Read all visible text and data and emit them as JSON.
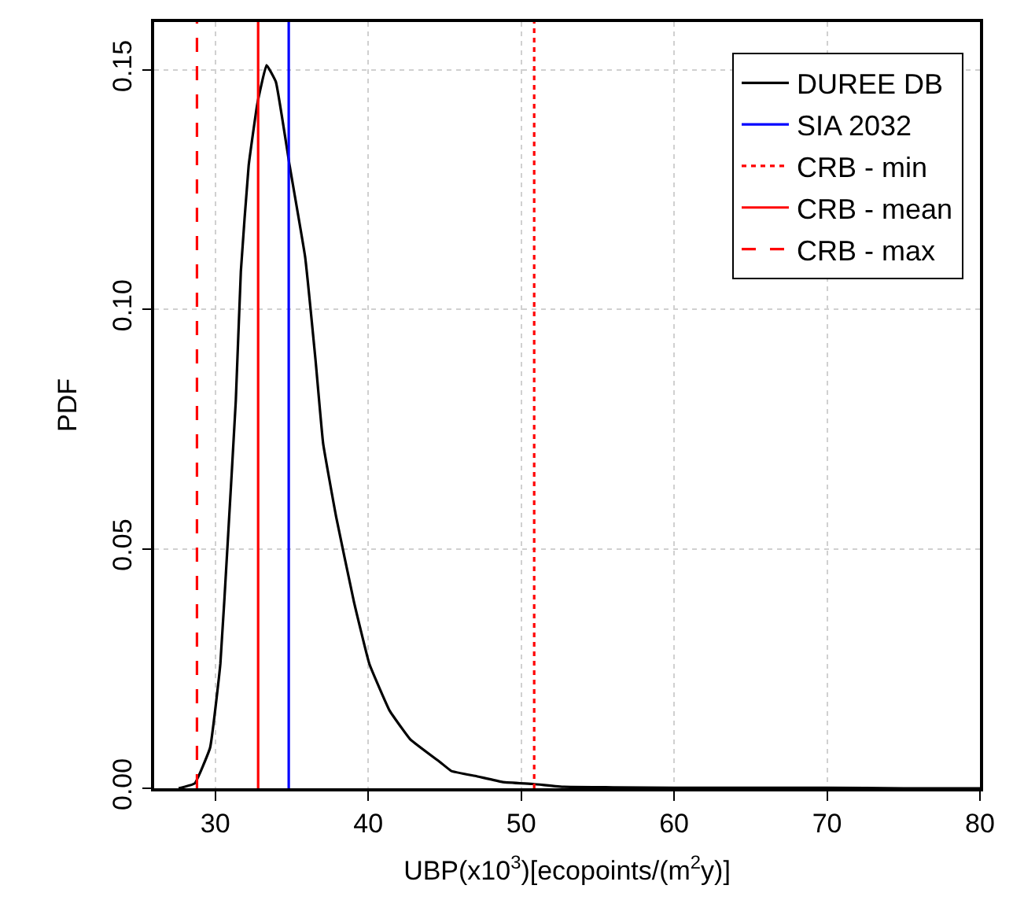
{
  "chart_data": {
    "type": "line",
    "xlabel": "UBP(x10$^{3}$)[ecopoints/(m$^{2}$y)]",
    "ylabel": "PDF",
    "xlim": [
      26,
      80
    ],
    "xticks": [
      30,
      40,
      50,
      60,
      70,
      80
    ],
    "ylim": [
      0,
      0.16
    ],
    "yticks": [
      {
        "value": 0,
        "label": "0.00"
      },
      0.05,
      {
        "value": 0.1,
        "label": "0.10"
      },
      0.15
    ],
    "series": [
      {
        "name": "DUREE DB",
        "color": "#000000",
        "x": [
          27.6,
          28.65,
          29.66,
          30.33,
          30.84,
          31.34,
          31.67,
          32.18,
          32.75,
          33.35,
          33.96,
          34.86,
          35.87,
          36.55,
          37.05,
          37.9,
          39.06,
          40.07,
          41.4,
          42.75,
          44.76,
          45.44,
          47.1,
          48.8,
          50.8,
          52.8,
          56,
          60,
          65,
          70,
          75,
          80
        ],
        "values": [
          0.0,
          0.001,
          0.0085,
          0.026,
          0.053,
          0.081,
          0.108,
          0.13,
          0.143,
          0.151,
          0.1475,
          0.13,
          0.111,
          0.0895,
          0.072,
          0.0567,
          0.039,
          0.026,
          0.0162,
          0.0102,
          0.0053,
          0.0036,
          0.0025,
          0.0013,
          0.0009,
          0.0003,
          0.0002,
          0.0001,
          0.0001,
          0.0001,
          0.0,
          0.0
        ]
      },
      {
        "name": "SIA 2032",
        "color": "#0000ff",
        "line_style": "solid",
        "x": [
          34.8,
          34.8
        ],
        "values": [
          0,
          0.16
        ]
      },
      {
        "name": "CRB - min",
        "color": "#ff0000",
        "line_style": "dotted",
        "x": [
          50.85,
          50.85
        ],
        "values": [
          0,
          0.16
        ]
      },
      {
        "name": "CRB - mean",
        "color": "#ff0000",
        "line_style": "solid",
        "x": [
          32.8,
          32.8
        ],
        "values": [
          0,
          0.16
        ]
      },
      {
        "name": "CRB - max",
        "color": "#ff0000",
        "line_style": "dashed",
        "x": [
          28.8,
          28.8
        ],
        "values": [
          0,
          0.16
        ]
      }
    ],
    "grid": true,
    "legend": "top right",
    "line_style": "solid",
    "marker": "none"
  }
}
